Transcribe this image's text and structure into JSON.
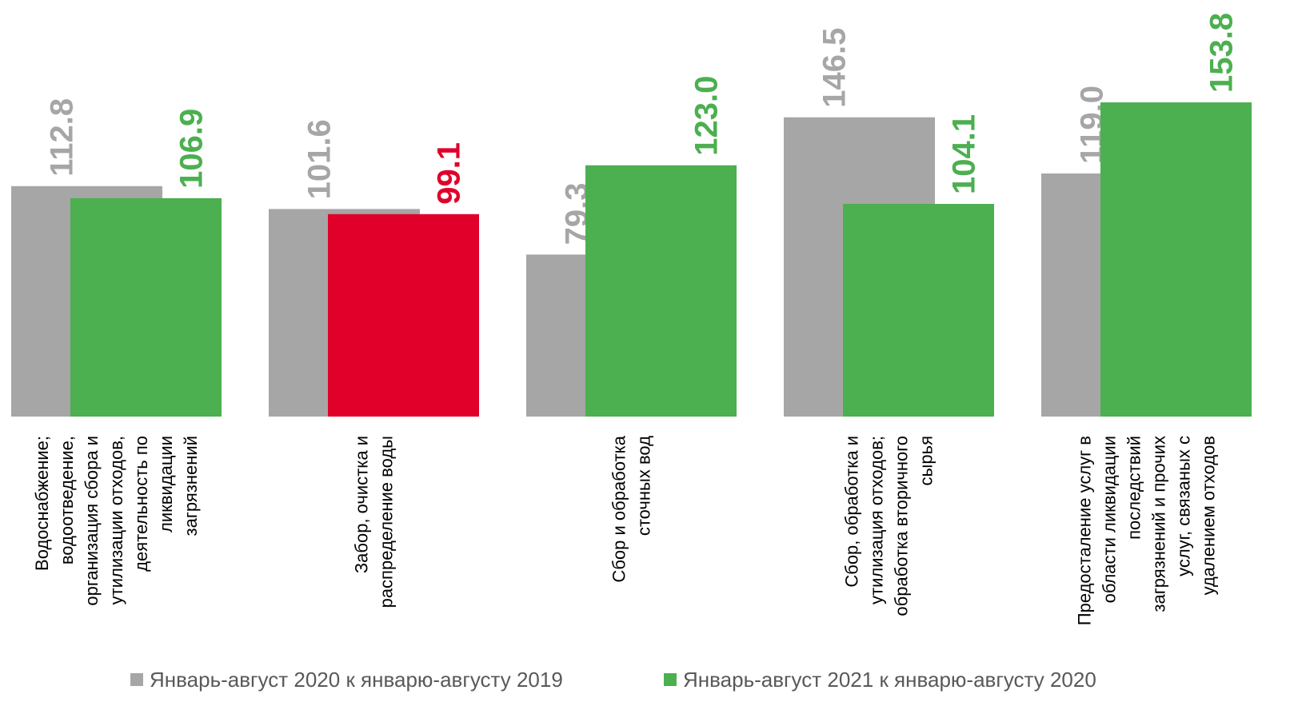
{
  "chart_data": {
    "type": "bar",
    "categories": [
      "Водоснабжение;\nводоотведение,\nорганизация сбора и\nутилизации отходов,\nдеятельность по\nликвидации\nзагрязнений",
      "Забор, очистка и\nраспределение воды",
      "Сбор и обработка\nсточных вод",
      "Сбор, обработка и\nутилизация отходов;\nобработка вторичного\nсырья",
      "Предосталение услуг в\nобласти ликвидации\nпоследствий\nзагрязнений и прочих\nуслуг, связаных с\nудалением отходов"
    ],
    "series": [
      {
        "name": "Январь-август 2020 к январю-августу 2019",
        "color": "#a6a6a6",
        "colors": [
          "#a6a6a6",
          "#a6a6a6",
          "#a6a6a6",
          "#a6a6a6",
          "#a6a6a6"
        ],
        "values": [
          112.8,
          101.6,
          79.3,
          146.5,
          119.0
        ],
        "value_labels": [
          "112.8",
          "101.6",
          "79.3",
          "146.5",
          "119.0"
        ]
      },
      {
        "name": "Январь-август 2021 к январю-августу 2020",
        "color": "#4caf50",
        "colors": [
          "#4caf50",
          "#e0002a",
          "#4caf50",
          "#4caf50",
          "#4caf50"
        ],
        "values": [
          106.9,
          99.1,
          123.0,
          104.1,
          153.8
        ],
        "value_labels": [
          "106.9",
          "99.1",
          "123.0",
          "104.1",
          "153.8"
        ]
      }
    ],
    "ylim": [
      0,
      200
    ]
  }
}
